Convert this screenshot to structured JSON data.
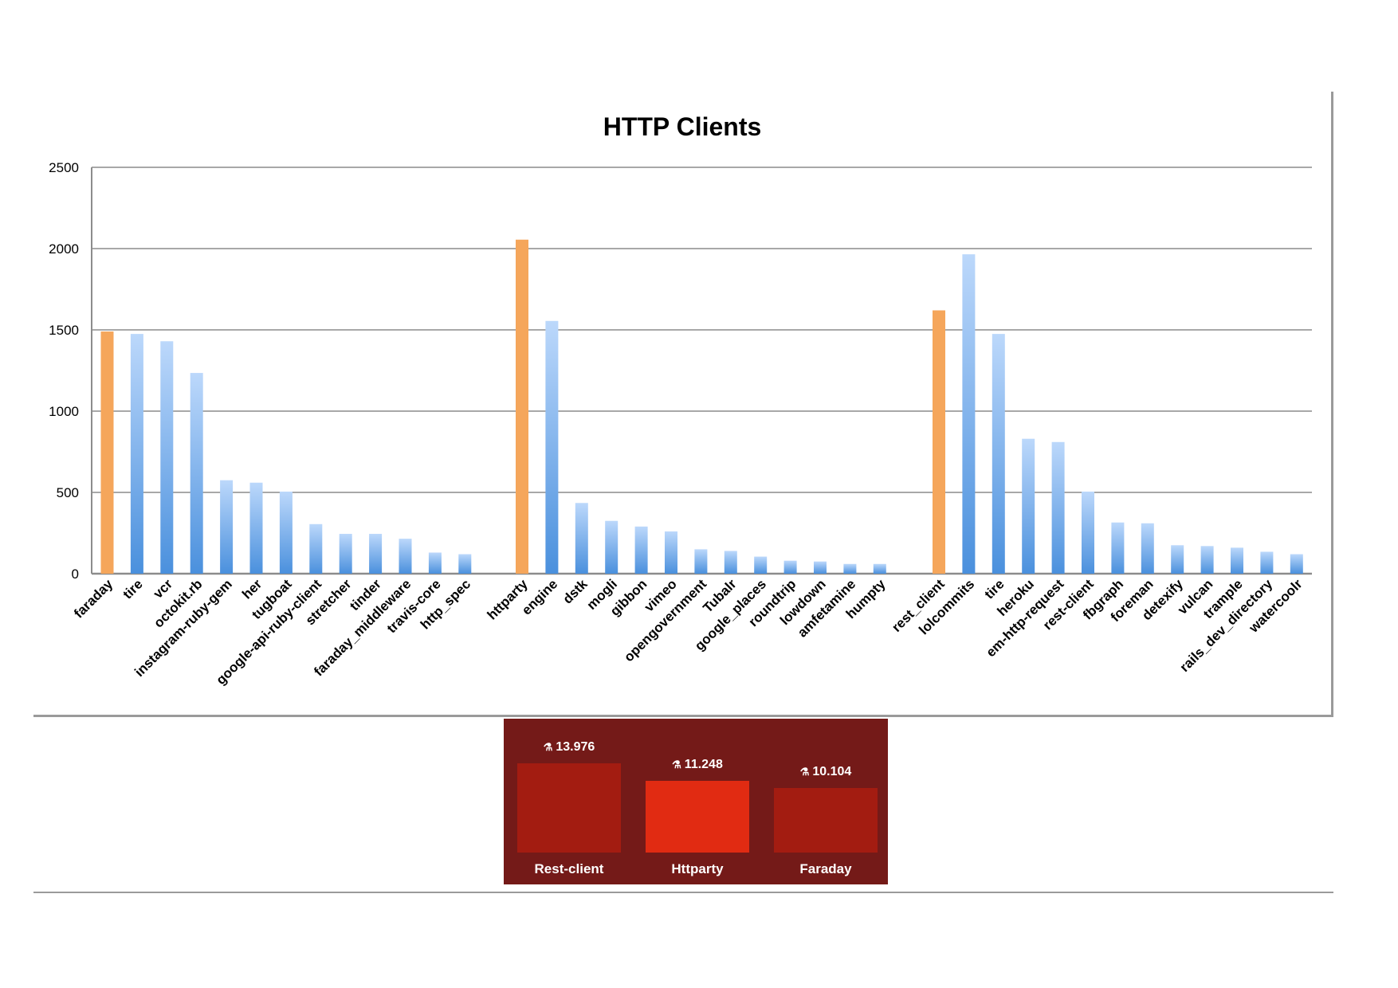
{
  "chart_data": [
    {
      "type": "bar",
      "title": "HTTP Clients",
      "xlabel": "",
      "ylabel": "",
      "ylim": [
        0,
        2500
      ],
      "yticks": [
        0,
        500,
        1000,
        1500,
        2000,
        2500
      ],
      "grid": true,
      "legend": "none",
      "colors": {
        "highlight": "#f5a65b",
        "normal_top": "#bcd8fb",
        "normal_bottom": "#4a90dd",
        "grid": "#8c8c8c"
      },
      "groups": [
        {
          "bars": [
            {
              "label": "faraday",
              "value": 1490,
              "highlight": true
            },
            {
              "label": "tire",
              "value": 1475
            },
            {
              "label": "vcr",
              "value": 1430
            },
            {
              "label": "octokit.rb",
              "value": 1235
            },
            {
              "label": "instagram-ruby-gem",
              "value": 575
            },
            {
              "label": "her",
              "value": 560
            },
            {
              "label": "tugboat",
              "value": 505
            },
            {
              "label": "google-api-ruby-client",
              "value": 305
            },
            {
              "label": "stretcher",
              "value": 245
            },
            {
              "label": "tinder",
              "value": 245
            },
            {
              "label": "faraday_middleware",
              "value": 215
            },
            {
              "label": "travis-core",
              "value": 130
            },
            {
              "label": "http_spec",
              "value": 120
            }
          ]
        },
        {
          "bars": [
            {
              "label": "httparty",
              "value": 2055,
              "highlight": true
            },
            {
              "label": "engine",
              "value": 1555
            },
            {
              "label": "dstk",
              "value": 435
            },
            {
              "label": "mogli",
              "value": 325
            },
            {
              "label": "gibbon",
              "value": 290
            },
            {
              "label": "vimeo",
              "value": 260
            },
            {
              "label": "opengovernment",
              "value": 150
            },
            {
              "label": "Tubalr",
              "value": 140
            },
            {
              "label": "google_places",
              "value": 105
            },
            {
              "label": "roundtrip",
              "value": 80
            },
            {
              "label": "lowdown",
              "value": 75
            },
            {
              "label": "amfetamine",
              "value": 60
            },
            {
              "label": "humpty",
              "value": 60
            }
          ]
        },
        {
          "bars": [
            {
              "label": "rest_client",
              "value": 1620,
              "highlight": true
            },
            {
              "label": "lolcommits",
              "value": 1965
            },
            {
              "label": "tire",
              "value": 1475
            },
            {
              "label": "heroku",
              "value": 830
            },
            {
              "label": "em-http-request",
              "value": 810
            },
            {
              "label": "rest-client",
              "value": 505
            },
            {
              "label": "fbgraph",
              "value": 315
            },
            {
              "label": "foreman",
              "value": 310
            },
            {
              "label": "detexify",
              "value": 175
            },
            {
              "label": "vulcan",
              "value": 170
            },
            {
              "label": "trample",
              "value": 160
            },
            {
              "label": "rails_dev_directory",
              "value": 135
            },
            {
              "label": "watercoolr",
              "value": 120
            }
          ]
        }
      ]
    },
    {
      "type": "bar",
      "title": "",
      "colors": {
        "panel": "#741a18",
        "bar_dark": "#a31c11",
        "bar_bright": "#e12b12",
        "text": "#ffffff"
      },
      "icon": "flask-icon",
      "bars": [
        {
          "label": "Rest-client",
          "value": 13.976,
          "value_text": "13.976",
          "highlight": false
        },
        {
          "label": "Httparty",
          "value": 11.248,
          "value_text": "11.248",
          "highlight": true
        },
        {
          "label": "Faraday",
          "value": 10.104,
          "value_text": "10.104",
          "highlight": false
        }
      ]
    }
  ]
}
